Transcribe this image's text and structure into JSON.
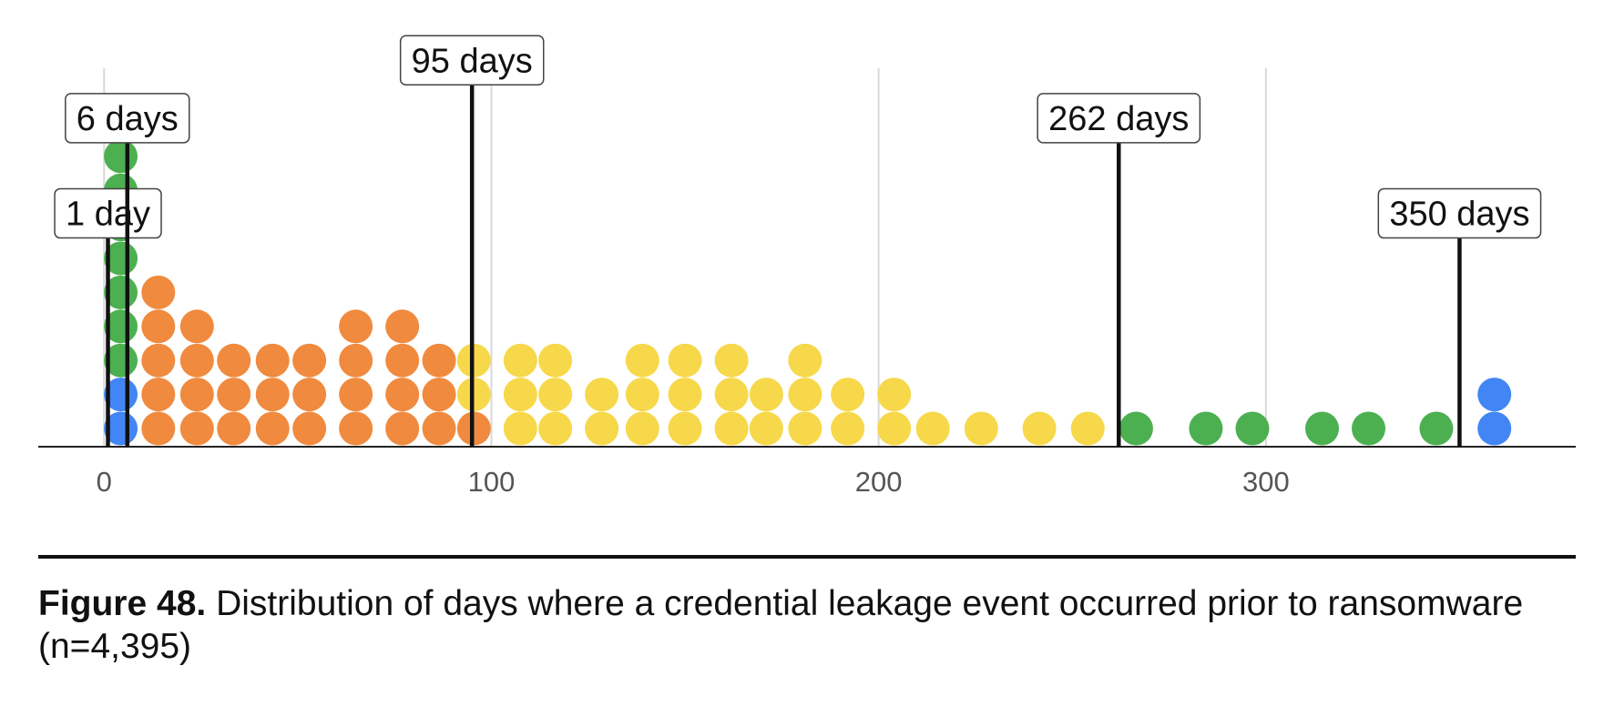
{
  "chart_data": {
    "type": "scatter",
    "subtype": "dot-strip",
    "title": "",
    "xlabel": "",
    "ylabel": "",
    "xlim": [
      -17,
      380
    ],
    "x_ticks": [
      0,
      100,
      200,
      300
    ],
    "grid": "vertical",
    "colors": {
      "blue": "#4285F4",
      "green": "#4CB050",
      "orange": "#F08A3E",
      "yellow": "#F7D84A"
    },
    "points": [
      {
        "x": 4.3,
        "y": 0,
        "color": "blue"
      },
      {
        "x": 4.3,
        "y": 1,
        "color": "blue"
      },
      {
        "x": 4.3,
        "y": 2,
        "color": "green"
      },
      {
        "x": 4.3,
        "y": 3,
        "color": "green"
      },
      {
        "x": 4.3,
        "y": 4,
        "color": "green"
      },
      {
        "x": 4.3,
        "y": 5,
        "color": "green"
      },
      {
        "x": 4.3,
        "y": 6,
        "color": "green"
      },
      {
        "x": 4.3,
        "y": 7,
        "color": "green"
      },
      {
        "x": 4.3,
        "y": 8,
        "color": "green"
      },
      {
        "x": 4.3,
        "y": 9,
        "color": "orange"
      },
      {
        "x": 14,
        "y": 0,
        "color": "orange"
      },
      {
        "x": 14,
        "y": 1,
        "color": "orange"
      },
      {
        "x": 14,
        "y": 2,
        "color": "orange"
      },
      {
        "x": 14,
        "y": 3,
        "color": "orange"
      },
      {
        "x": 14,
        "y": 4,
        "color": "orange"
      },
      {
        "x": 24,
        "y": 0,
        "color": "orange"
      },
      {
        "x": 24,
        "y": 1,
        "color": "orange"
      },
      {
        "x": 24,
        "y": 2,
        "color": "orange"
      },
      {
        "x": 24,
        "y": 3,
        "color": "orange"
      },
      {
        "x": 33.5,
        "y": 0,
        "color": "orange"
      },
      {
        "x": 33.5,
        "y": 1,
        "color": "orange"
      },
      {
        "x": 33.5,
        "y": 2,
        "color": "orange"
      },
      {
        "x": 43.5,
        "y": 0,
        "color": "orange"
      },
      {
        "x": 43.5,
        "y": 1,
        "color": "orange"
      },
      {
        "x": 43.5,
        "y": 2,
        "color": "orange"
      },
      {
        "x": 53,
        "y": 0,
        "color": "orange"
      },
      {
        "x": 53,
        "y": 1,
        "color": "orange"
      },
      {
        "x": 53,
        "y": 2,
        "color": "orange"
      },
      {
        "x": 65,
        "y": 0,
        "color": "orange"
      },
      {
        "x": 65,
        "y": 1,
        "color": "orange"
      },
      {
        "x": 65,
        "y": 2,
        "color": "orange"
      },
      {
        "x": 65,
        "y": 3,
        "color": "orange"
      },
      {
        "x": 77,
        "y": 0,
        "color": "orange"
      },
      {
        "x": 77,
        "y": 1,
        "color": "orange"
      },
      {
        "x": 77,
        "y": 2,
        "color": "orange"
      },
      {
        "x": 77,
        "y": 3,
        "color": "orange"
      },
      {
        "x": 86.5,
        "y": 0,
        "color": "orange"
      },
      {
        "x": 86.5,
        "y": 1,
        "color": "orange"
      },
      {
        "x": 86.5,
        "y": 2,
        "color": "orange"
      },
      {
        "x": 95.5,
        "y": 0,
        "color": "orange"
      },
      {
        "x": 95.5,
        "y": 1,
        "color": "yellow"
      },
      {
        "x": 95.5,
        "y": 2,
        "color": "yellow"
      },
      {
        "x": 107.5,
        "y": 0,
        "color": "yellow"
      },
      {
        "x": 107.5,
        "y": 1,
        "color": "yellow"
      },
      {
        "x": 107.5,
        "y": 2,
        "color": "yellow"
      },
      {
        "x": 116.5,
        "y": 0,
        "color": "yellow"
      },
      {
        "x": 116.5,
        "y": 1,
        "color": "yellow"
      },
      {
        "x": 116.5,
        "y": 2,
        "color": "yellow"
      },
      {
        "x": 128.5,
        "y": 0,
        "color": "yellow"
      },
      {
        "x": 128.5,
        "y": 1,
        "color": "yellow"
      },
      {
        "x": 139,
        "y": 0,
        "color": "yellow"
      },
      {
        "x": 139,
        "y": 1,
        "color": "yellow"
      },
      {
        "x": 139,
        "y": 2,
        "color": "yellow"
      },
      {
        "x": 150,
        "y": 0,
        "color": "yellow"
      },
      {
        "x": 150,
        "y": 1,
        "color": "yellow"
      },
      {
        "x": 150,
        "y": 2,
        "color": "yellow"
      },
      {
        "x": 162,
        "y": 0,
        "color": "yellow"
      },
      {
        "x": 162,
        "y": 1,
        "color": "yellow"
      },
      {
        "x": 162,
        "y": 2,
        "color": "yellow"
      },
      {
        "x": 171,
        "y": 0,
        "color": "yellow"
      },
      {
        "x": 171,
        "y": 1,
        "color": "yellow"
      },
      {
        "x": 181,
        "y": 0,
        "color": "yellow"
      },
      {
        "x": 181,
        "y": 1,
        "color": "yellow"
      },
      {
        "x": 181,
        "y": 2,
        "color": "yellow"
      },
      {
        "x": 192,
        "y": 0,
        "color": "yellow"
      },
      {
        "x": 192,
        "y": 1,
        "color": "yellow"
      },
      {
        "x": 204,
        "y": 0,
        "color": "yellow"
      },
      {
        "x": 204,
        "y": 1,
        "color": "yellow"
      },
      {
        "x": 214,
        "y": 0,
        "color": "yellow"
      },
      {
        "x": 226.5,
        "y": 0,
        "color": "yellow"
      },
      {
        "x": 241.5,
        "y": 0,
        "color": "yellow"
      },
      {
        "x": 254,
        "y": 0,
        "color": "yellow"
      },
      {
        "x": 266.5,
        "y": 0,
        "color": "green"
      },
      {
        "x": 284.5,
        "y": 0,
        "color": "green"
      },
      {
        "x": 296.5,
        "y": 0,
        "color": "green"
      },
      {
        "x": 314.5,
        "y": 0,
        "color": "green"
      },
      {
        "x": 326.5,
        "y": 0,
        "color": "green"
      },
      {
        "x": 344,
        "y": 0,
        "color": "green"
      },
      {
        "x": 359,
        "y": 0,
        "color": "blue"
      },
      {
        "x": 359,
        "y": 1,
        "color": "blue"
      }
    ],
    "markers": [
      {
        "x": 1,
        "label": "1 day",
        "height": 5.6
      },
      {
        "x": 6,
        "label": "6 days",
        "height": 8.4
      },
      {
        "x": 95,
        "label": "95 days",
        "height": 10.1
      },
      {
        "x": 262,
        "label": "262 days",
        "height": 8.4
      },
      {
        "x": 350,
        "label": "350 days",
        "height": 5.6
      }
    ]
  },
  "caption": {
    "figure": "Figure 48.",
    "text": " Distribution of days where a credential leakage event occurred prior to ransomware (n=4,395)"
  }
}
